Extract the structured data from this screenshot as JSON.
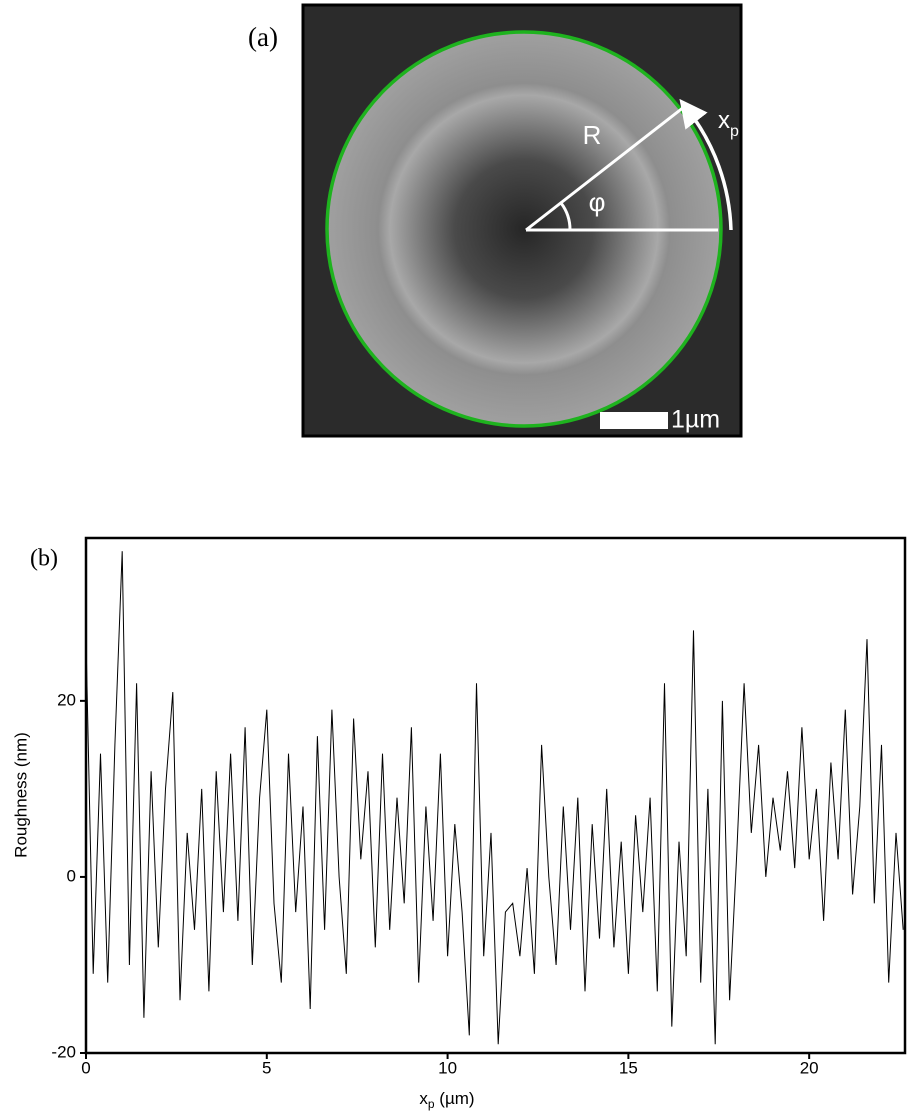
{
  "image_panel": {
    "label": "(a)",
    "radius_label": "R",
    "angle_label": "φ",
    "arc_label": [
      "x",
      "p"
    ],
    "scale_bar": "1µm"
  },
  "chart_data": {
    "type": "line",
    "panel_label": "(b)",
    "ylabel": "Roughness (nm)",
    "xlabel": [
      "x",
      "p",
      " (µm)"
    ],
    "xlim": [
      0,
      22.65
    ],
    "ylim": [
      -20,
      38.5
    ],
    "xticks": [
      0,
      5,
      10,
      15,
      20
    ],
    "yticks": [
      -20,
      0,
      20
    ],
    "x": [
      0.0,
      0.2,
      0.4,
      0.6,
      0.8,
      1.0,
      1.2,
      1.4,
      1.6,
      1.8,
      2.0,
      2.2,
      2.4,
      2.6,
      2.8,
      3.0,
      3.2,
      3.4,
      3.6,
      3.8,
      4.0,
      4.2,
      4.4,
      4.6,
      4.8,
      5.0,
      5.2,
      5.4,
      5.6,
      5.8,
      6.0,
      6.2,
      6.4,
      6.6,
      6.8,
      7.0,
      7.2,
      7.4,
      7.6,
      7.8,
      8.0,
      8.2,
      8.4,
      8.6,
      8.8,
      9.0,
      9.2,
      9.4,
      9.6,
      9.8,
      10.0,
      10.2,
      10.4,
      10.6,
      10.8,
      11.0,
      11.2,
      11.4,
      11.6,
      11.8,
      12.0,
      12.2,
      12.4,
      12.6,
      12.8,
      13.0,
      13.2,
      13.4,
      13.6,
      13.8,
      14.0,
      14.2,
      14.4,
      14.6,
      14.8,
      15.0,
      15.2,
      15.4,
      15.6,
      15.8,
      16.0,
      16.2,
      16.4,
      16.6,
      16.8,
      17.0,
      17.2,
      17.4,
      17.6,
      17.8,
      18.0,
      18.2,
      18.4,
      18.6,
      18.8,
      19.0,
      19.2,
      19.4,
      19.6,
      19.8,
      20.0,
      20.2,
      20.4,
      20.6,
      20.8,
      21.0,
      21.2,
      21.4,
      21.6,
      21.8,
      22.0,
      22.2,
      22.4,
      22.6
    ],
    "series": [
      {
        "color": "#000000",
        "values": [
          27,
          -11,
          14,
          -12,
          15,
          37,
          -10,
          22,
          -16,
          12,
          -8,
          10,
          21,
          -14,
          5,
          -6,
          10,
          -13,
          12,
          -4,
          14,
          -5,
          17,
          -10,
          9,
          19,
          -3,
          -12,
          14,
          -4,
          8,
          -15,
          16,
          -6,
          19,
          0,
          -11,
          18,
          2,
          12,
          -8,
          14,
          -6,
          9,
          -3,
          17,
          -12,
          8,
          -5,
          14,
          -9,
          6,
          -4,
          -18,
          22,
          -9,
          5,
          -19,
          -4,
          -3,
          -9,
          1,
          -11,
          15,
          0,
          -10,
          8,
          -6,
          9,
          -13,
          6,
          -7,
          10,
          -8,
          4,
          -11,
          7,
          -4,
          9,
          -13,
          22,
          -17,
          4,
          -9,
          28,
          -12,
          10,
          -19,
          20,
          -14,
          3,
          22,
          5,
          15,
          0,
          9,
          3,
          12,
          1,
          17,
          2,
          10,
          -5,
          13,
          2,
          19,
          -2,
          8,
          27,
          -3,
          15,
          -12,
          5,
          -6
        ]
      }
    ]
  }
}
